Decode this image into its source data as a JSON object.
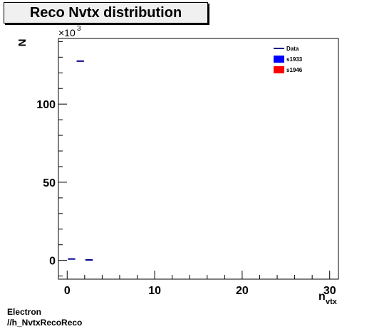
{
  "title": "Reco Nvtx distribution",
  "footer": {
    "line1": "Electron",
    "line2": "//h_NvtxRecoReco"
  },
  "colors": {
    "data": "#00008b",
    "s1933": "#0000ff",
    "s1946": "#ff0000"
  },
  "chart_data": {
    "type": "scatter",
    "title": "Reco Nvtx distribution",
    "xlabel": "n_vtx",
    "xlabel_main": "n",
    "xlabel_sub": "vtx",
    "ylabel": "N",
    "y_multiplier": "×10",
    "y_multiplier_exp": "3",
    "xlim": [
      -1,
      31
    ],
    "ylim": [
      -12,
      142
    ],
    "x_ticks": [
      0,
      10,
      20,
      30
    ],
    "y_ticks": [
      0,
      50,
      100
    ],
    "legend": {
      "placement": "top-right",
      "entries": [
        "Data",
        "s1933",
        "s1946"
      ]
    },
    "series": [
      {
        "name": "Data",
        "style": "marker",
        "points": [
          {
            "x0": 0,
            "x1": 1,
            "y": 0.9
          },
          {
            "x0": 1,
            "x1": 2,
            "y": 127.5
          },
          {
            "x0": 2,
            "x1": 3,
            "y": 0.3
          }
        ]
      },
      {
        "name": "s1933",
        "style": "fill",
        "points": []
      },
      {
        "name": "s1946",
        "style": "fill",
        "points": []
      }
    ]
  }
}
